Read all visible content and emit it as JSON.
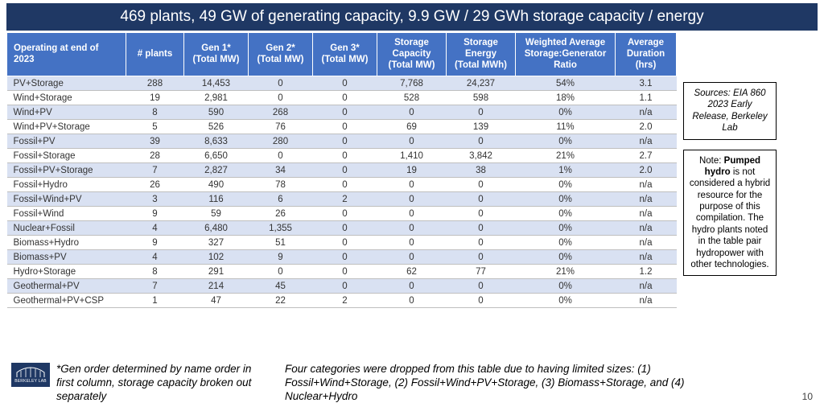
{
  "title": "469 plants, 49 GW of generating capacity, 9.9 GW / 29 GWh storage capacity / energy",
  "columns": [
    "Operating at end of 2023",
    "# plants",
    "Gen 1*\n(Total MW)",
    "Gen 2*\n(Total MW)",
    "Gen 3*\n(Total MW)",
    "Storage\nCapacity\n(Total MW)",
    "Storage\nEnergy\n(Total MWh)",
    "Weighted Average\nStorage:Generator\nRatio",
    "Average\nDuration\n(hrs)"
  ],
  "rows": [
    [
      "PV+Storage",
      "288",
      "14,453",
      "0",
      "0",
      "7,768",
      "24,237",
      "54%",
      "3.1"
    ],
    [
      "Wind+Storage",
      "19",
      "2,981",
      "0",
      "0",
      "528",
      "598",
      "18%",
      "1.1"
    ],
    [
      "Wind+PV",
      "8",
      "590",
      "268",
      "0",
      "0",
      "0",
      "0%",
      "n/a"
    ],
    [
      "Wind+PV+Storage",
      "5",
      "526",
      "76",
      "0",
      "69",
      "139",
      "11%",
      "2.0"
    ],
    [
      "Fossil+PV",
      "39",
      "8,633",
      "280",
      "0",
      "0",
      "0",
      "0%",
      "n/a"
    ],
    [
      "Fossil+Storage",
      "28",
      "6,650",
      "0",
      "0",
      "1,410",
      "3,842",
      "21%",
      "2.7"
    ],
    [
      "Fossil+PV+Storage",
      "7",
      "2,827",
      "34",
      "0",
      "19",
      "38",
      "1%",
      "2.0"
    ],
    [
      "Fossil+Hydro",
      "26",
      "490",
      "78",
      "0",
      "0",
      "0",
      "0%",
      "n/a"
    ],
    [
      "Fossil+Wind+PV",
      "3",
      "116",
      "6",
      "2",
      "0",
      "0",
      "0%",
      "n/a"
    ],
    [
      "Fossil+Wind",
      "9",
      "59",
      "26",
      "0",
      "0",
      "0",
      "0%",
      "n/a"
    ],
    [
      "Nuclear+Fossil",
      "4",
      "6,480",
      "1,355",
      "0",
      "0",
      "0",
      "0%",
      "n/a"
    ],
    [
      "Biomass+Hydro",
      "9",
      "327",
      "51",
      "0",
      "0",
      "0",
      "0%",
      "n/a"
    ],
    [
      "Biomass+PV",
      "4",
      "102",
      "9",
      "0",
      "0",
      "0",
      "0%",
      "n/a"
    ],
    [
      "Hydro+Storage",
      "8",
      "291",
      "0",
      "0",
      "62",
      "77",
      "21%",
      "1.2"
    ],
    [
      "Geothermal+PV",
      "7",
      "214",
      "45",
      "0",
      "0",
      "0",
      "0%",
      "n/a"
    ],
    [
      "Geothermal+PV+CSP",
      "1",
      "47",
      "22",
      "2",
      "0",
      "0",
      "0%",
      "n/a"
    ]
  ],
  "banding": [
    true,
    false,
    true,
    false,
    true,
    false,
    true,
    false,
    true,
    false,
    true,
    false,
    true,
    false,
    true,
    false
  ],
  "sources_box": "Sources: EIA 860 2023 Early Release, Berkeley Lab",
  "note_box_pre": "Note: ",
  "note_box_bold": "Pumped hydro",
  "note_box_post": " is not considered a hybrid resource for the purpose of this compilation. The hydro plants noted in the table pair hydropower with other technologies.",
  "footnote1": "*Gen order determined by name order in first column, storage capacity broken out separately",
  "footnote2": "Four categories were dropped from this table due to having limited sizes: (1) Fossil+Wind+Storage, (2) Fossil+Wind+PV+Storage, (3) Biomass+Storage, and (4) Nuclear+Hydro",
  "logo_text": "BERKELEY LAB",
  "page_number": "10",
  "colors": {
    "title_bg": "#1f3864",
    "header_bg": "#4472c4",
    "band_bg": "#d9e1f2",
    "grid": "#bfbfbf"
  }
}
